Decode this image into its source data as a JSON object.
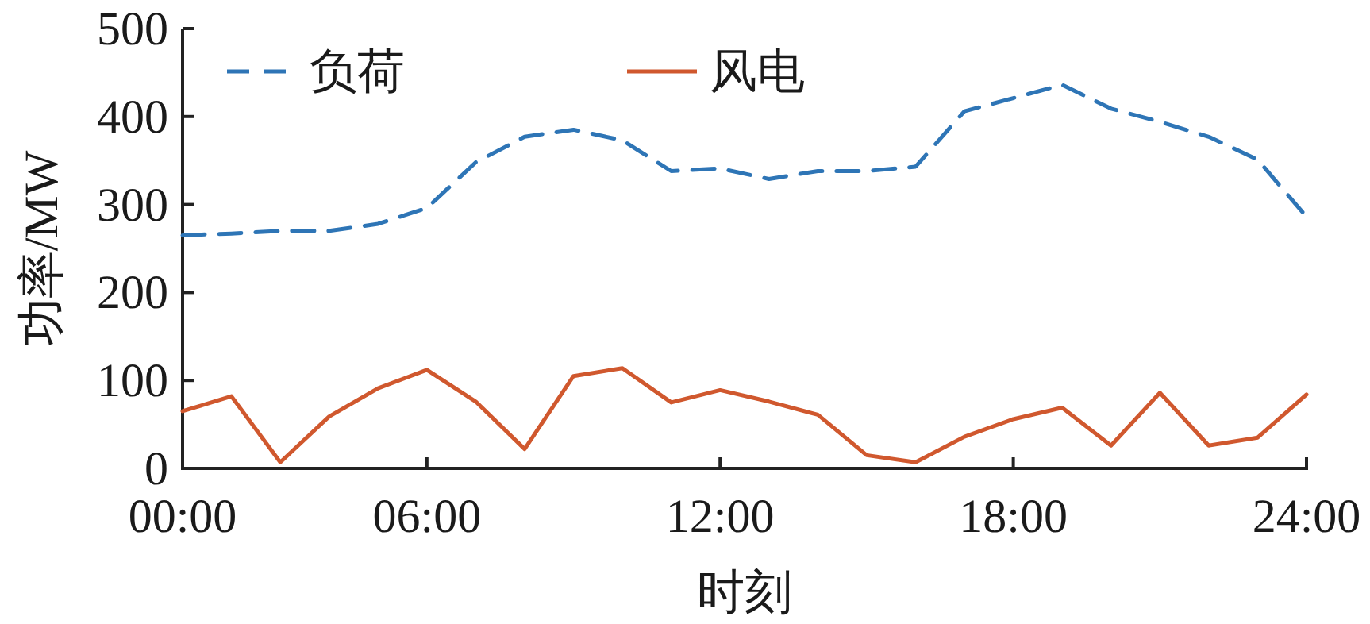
{
  "chart_data": {
    "type": "line",
    "xlabel": "时刻",
    "ylabel": "功率/MW",
    "x": [
      1,
      2,
      3,
      4,
      5,
      6,
      7,
      8,
      9,
      10,
      11,
      12,
      13,
      14,
      15,
      16,
      17,
      18,
      19,
      20,
      21,
      22,
      23,
      24
    ],
    "xlim": [
      1,
      24
    ],
    "xticks": [
      {
        "value": 1,
        "label": "00:00"
      },
      {
        "value": 6,
        "label": "06:00"
      },
      {
        "value": 12,
        "label": "12:00"
      },
      {
        "value": 18,
        "label": "18:00"
      },
      {
        "value": 24,
        "label": "24:00"
      }
    ],
    "ylim": [
      0,
      500
    ],
    "yticks": [
      0,
      100,
      200,
      300,
      400,
      500
    ],
    "legend": "top left",
    "grid": false,
    "series": [
      {
        "name": "负荷",
        "color": "#2e75b6",
        "line_style": "dashed",
        "values": [
          265,
          267,
          270,
          270,
          278,
          296,
          348,
          377,
          385,
          373,
          338,
          341,
          329,
          338,
          338,
          343,
          406,
          421,
          436,
          409,
          394,
          377,
          351,
          286
        ]
      },
      {
        "name": "风电",
        "color": "#d0582e",
        "line_style": "solid",
        "values": [
          65,
          82,
          7,
          59,
          91,
          112,
          76,
          22,
          105,
          114,
          75,
          89,
          76,
          61,
          15,
          7,
          36,
          56,
          69,
          26,
          86,
          26,
          35,
          84
        ]
      }
    ]
  }
}
